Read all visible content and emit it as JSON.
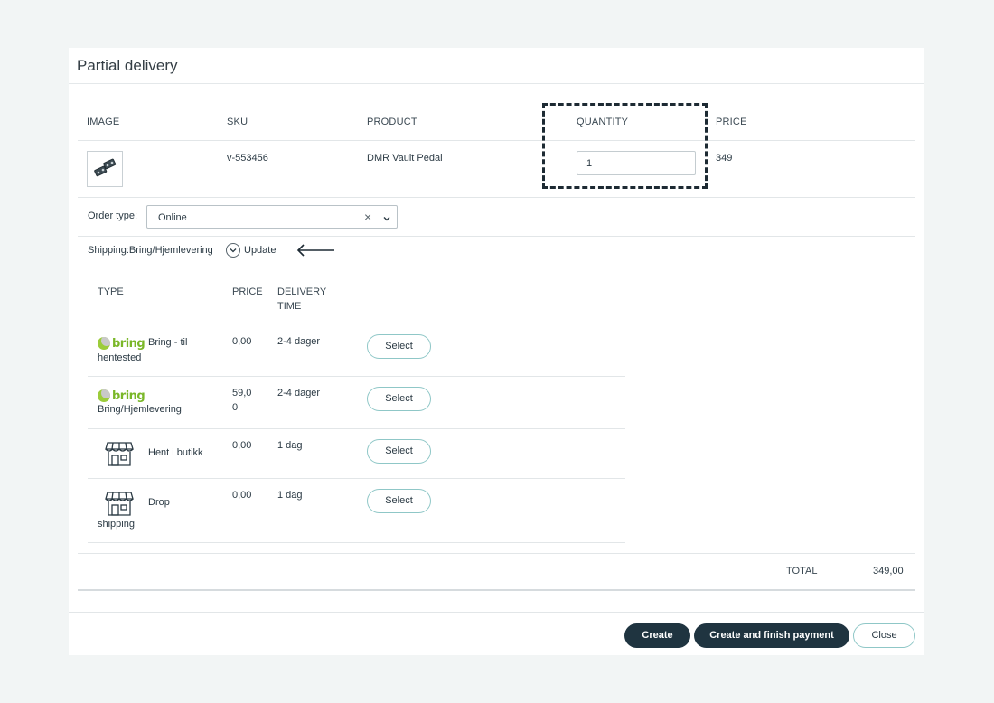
{
  "dialog": {
    "title": "Partial delivery"
  },
  "product_table": {
    "headers": {
      "image": "IMAGE",
      "sku": "SKU",
      "product": "PRODUCT",
      "quantity": "QUANTITY",
      "price": "PRICE"
    },
    "row": {
      "sku": "v-553456",
      "product": "DMR Vault Pedal",
      "quantity": "1",
      "price": "349"
    }
  },
  "order_type": {
    "label": "Order type:",
    "value": "Online",
    "clear_glyph": "×"
  },
  "shipping": {
    "label": "Shipping:Bring/Hjemlevering",
    "update_label": "Update"
  },
  "shipping_table": {
    "headers": {
      "type": "TYPE",
      "price": "PRICE",
      "delivery_line1": "DELIVERY",
      "delivery_line2": "TIME"
    },
    "rows": [
      {
        "icon": "bring-logo",
        "logo_text": "bring",
        "name_line1": "Bring - til",
        "name_line2": "hentested",
        "price": "0,00",
        "delivery": "2-4 dager",
        "button": "Select"
      },
      {
        "icon": "bring-logo",
        "logo_text": "bring",
        "name_line1": "",
        "name_line2": "Bring/Hjemlevering",
        "price_line1": "59,0",
        "price_line2": "0",
        "delivery": "2-4 dager",
        "button": "Select"
      },
      {
        "icon": "store-icon",
        "name_line1": "Hent i butikk",
        "price": "0,00",
        "delivery": "1 dag",
        "button": "Select"
      },
      {
        "icon": "store-icon",
        "name_line1": "Drop",
        "name_line2": "shipping",
        "price": "0,00",
        "delivery": "1 dag",
        "button": "Select"
      }
    ]
  },
  "totals": {
    "label": "TOTAL",
    "value": "349,00"
  },
  "footer": {
    "create": "Create",
    "create_finish": "Create and finish payment",
    "close": "Close"
  },
  "colors": {
    "dark_button": "#1f3440",
    "accent_border": "#8fc7c7",
    "bring_green": "#7ab728",
    "background": "#f2f5f5"
  }
}
